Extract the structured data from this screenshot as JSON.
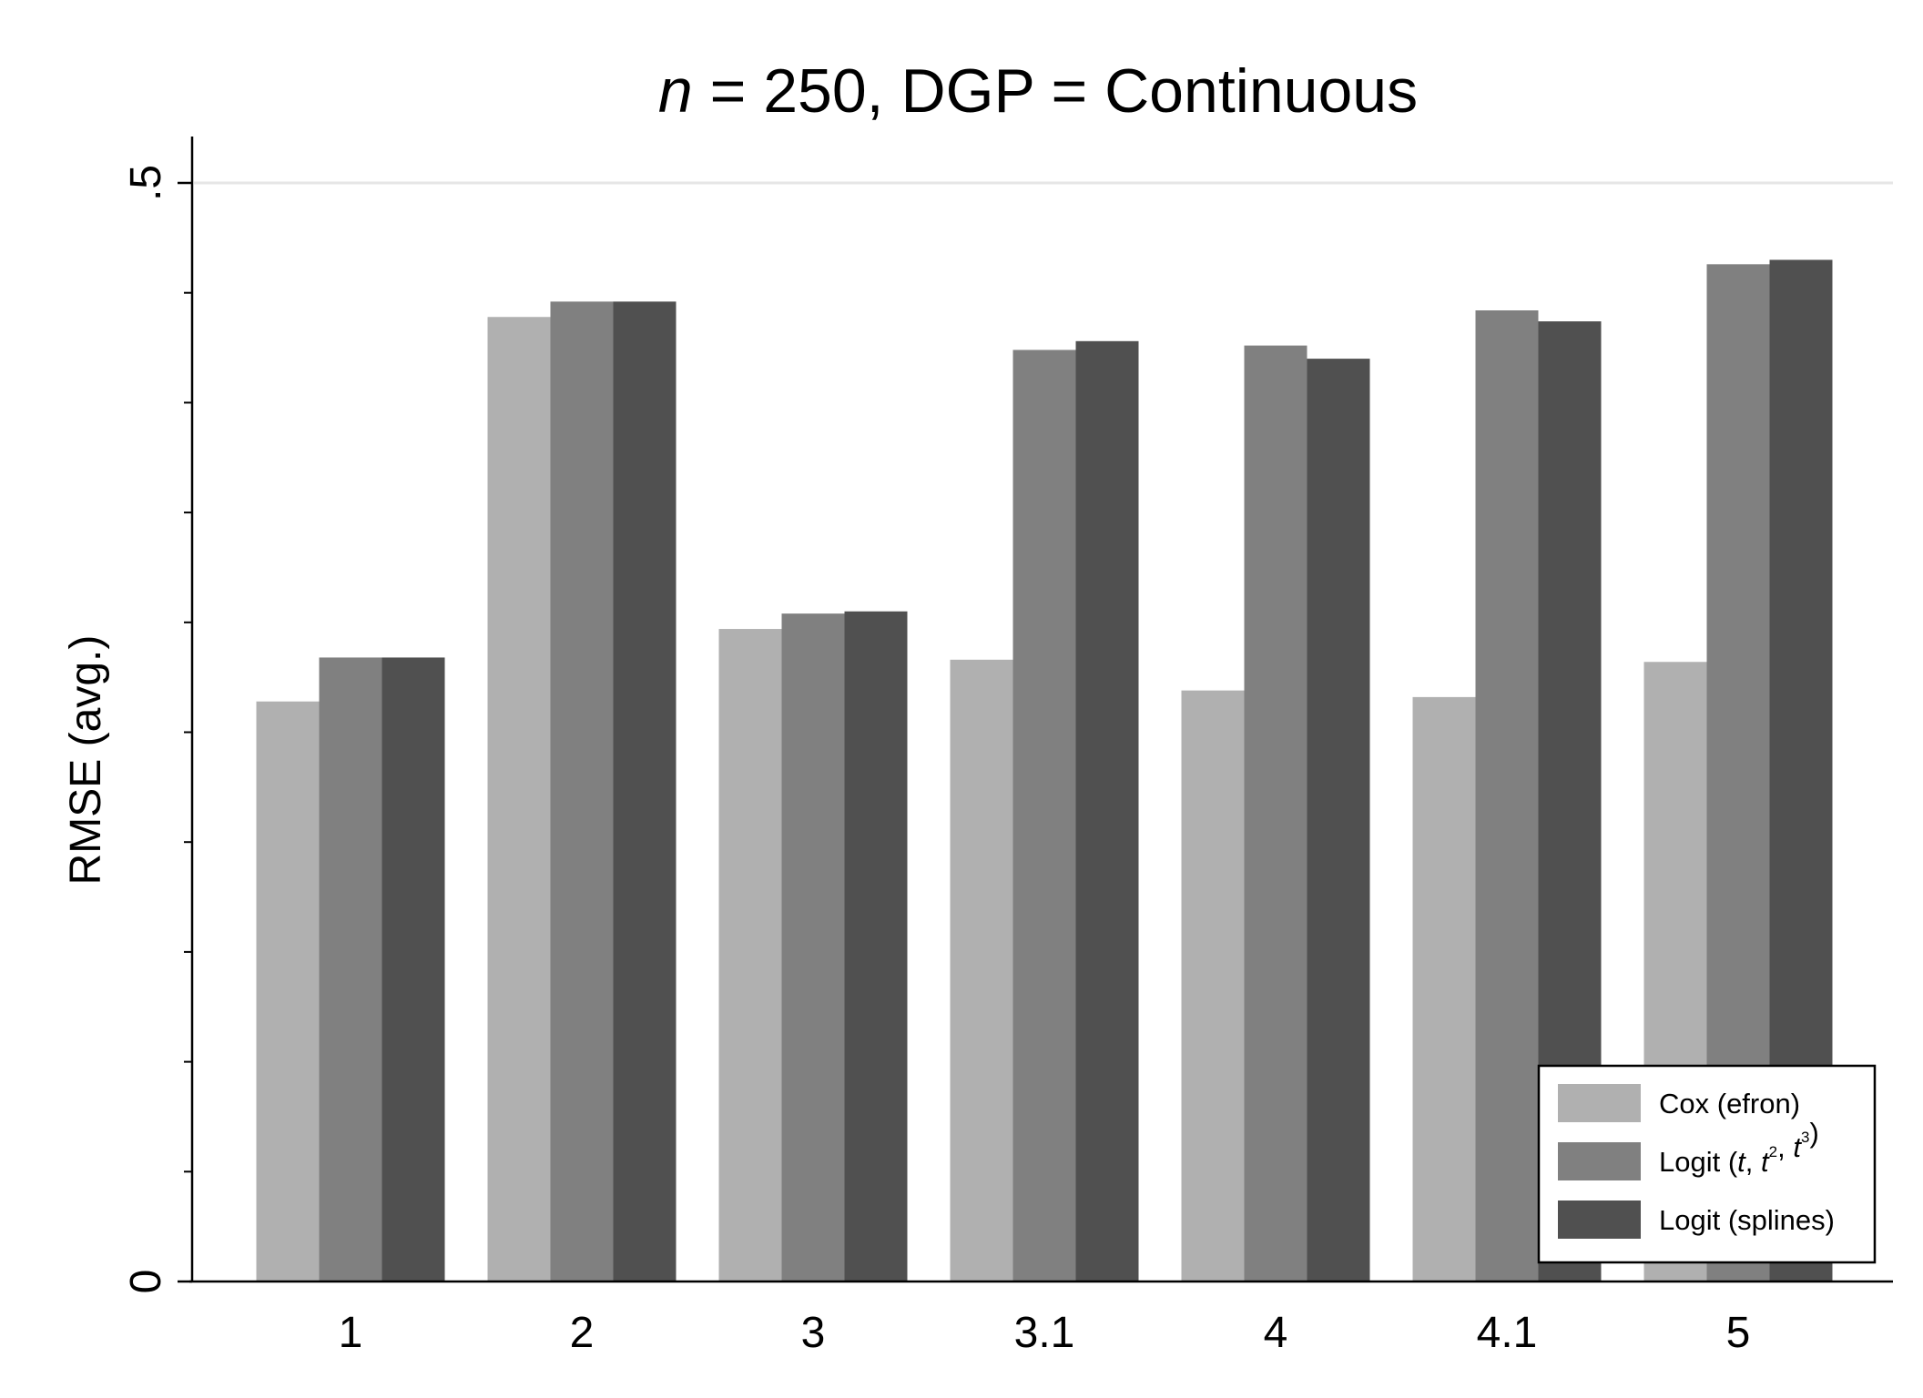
{
  "chart_data": {
    "type": "bar",
    "title": {
      "var": "n",
      "rest": " = 250, DGP = Continuous"
    },
    "ylabel": "RMSE (avg.)",
    "xlabel": "",
    "ylim": [
      0,
      0.5
    ],
    "y_tick_labels": [
      {
        "value": 0,
        "label": "0"
      },
      {
        "value": 0.5,
        "label": ".5"
      }
    ],
    "y_minor_ticks": [
      0.05,
      0.1,
      0.15,
      0.2,
      0.25,
      0.3,
      0.35,
      0.4,
      0.45
    ],
    "grid": "horizontal line at .5",
    "categories": [
      "1",
      "2",
      "3",
      "3.1",
      "4",
      "4.1",
      "5"
    ],
    "series": [
      {
        "name": "Cox (efron)",
        "color": "#b0b0b0",
        "values": [
          0.264,
          0.439,
          0.297,
          0.283,
          0.269,
          0.266,
          0.282
        ]
      },
      {
        "name": "Logit (t, t2, t3)",
        "color": "#808080",
        "values": [
          0.284,
          0.446,
          0.304,
          0.424,
          0.426,
          0.442,
          0.463
        ]
      },
      {
        "name": "Logit (splines)",
        "color": "#505050",
        "values": [
          0.284,
          0.446,
          0.305,
          0.428,
          0.42,
          0.437,
          0.465
        ]
      }
    ],
    "legend": {
      "position": "bottom-right",
      "entries": [
        {
          "parts": [
            {
              "t": "Cox (efron)"
            }
          ]
        },
        {
          "parts": [
            {
              "t": "Logit ("
            },
            {
              "t": "t",
              "i": true
            },
            {
              "t": ", "
            },
            {
              "t": "t",
              "i": true
            },
            {
              "t": "2",
              "sup": true
            },
            {
              "t": ", "
            },
            {
              "t": "t",
              "i": true
            },
            {
              "t": "3",
              "sup": true
            },
            {
              "t": ")"
            }
          ]
        },
        {
          "parts": [
            {
              "t": "Logit (splines)"
            }
          ]
        }
      ]
    }
  }
}
